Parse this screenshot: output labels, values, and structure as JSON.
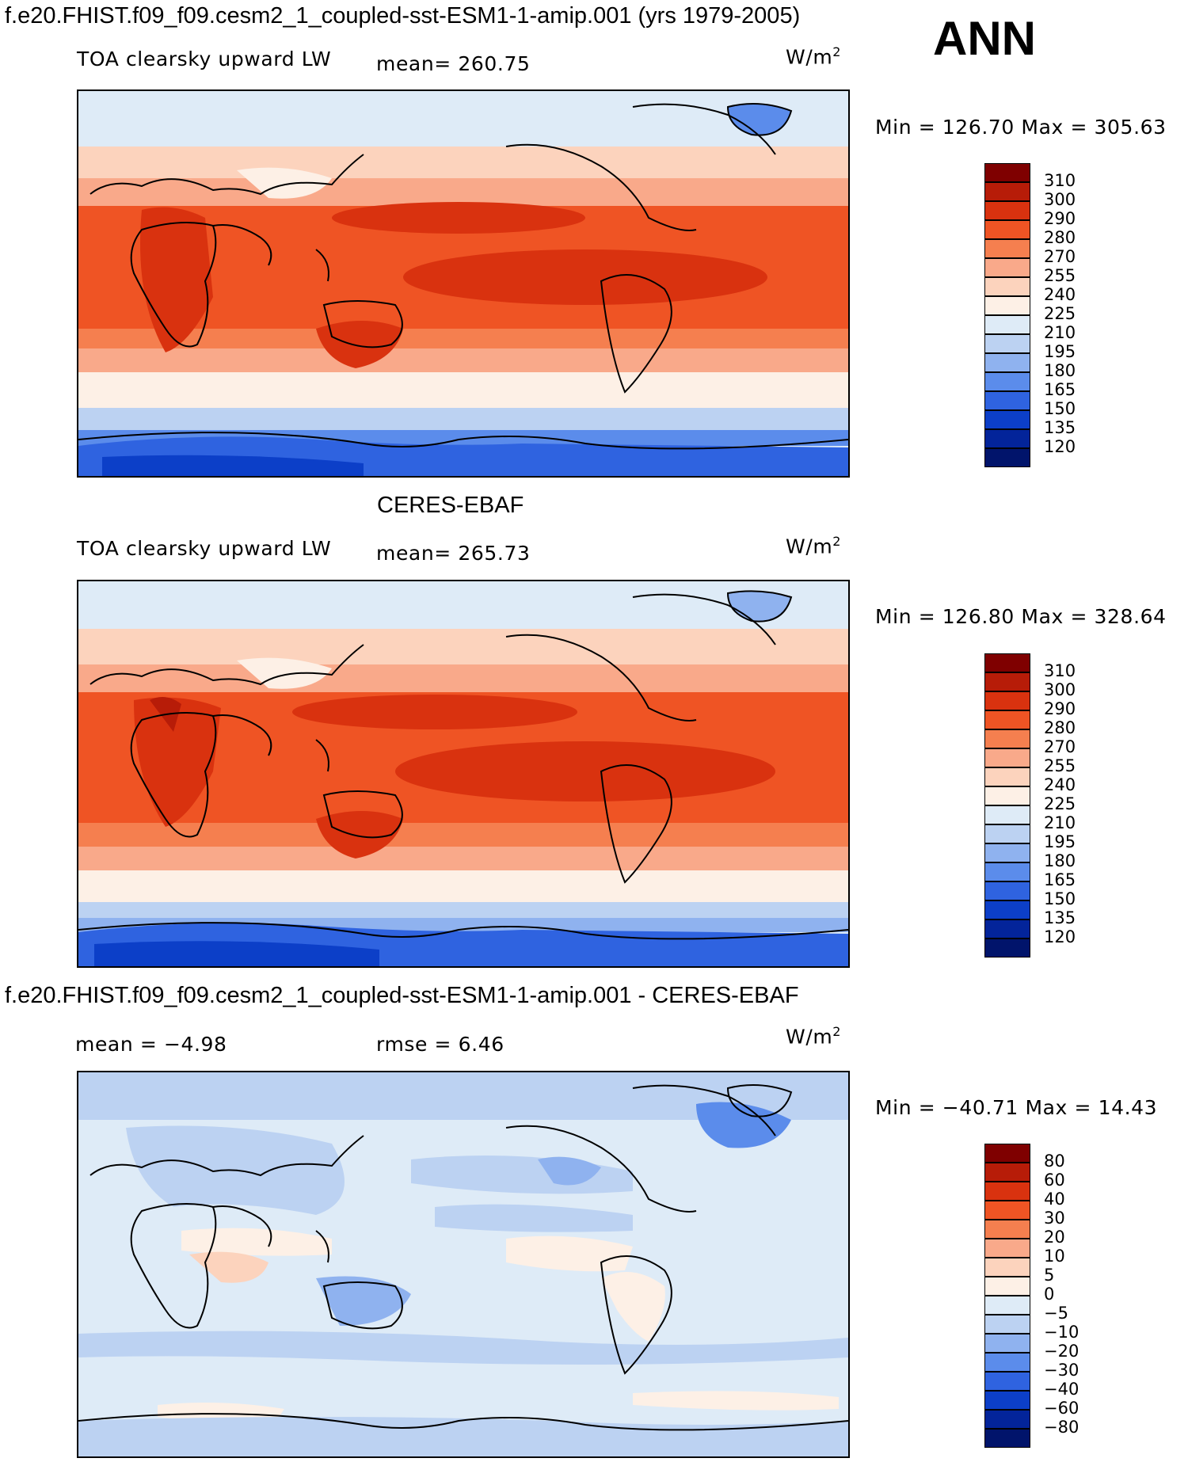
{
  "header": {
    "case_title": "f.e20.FHIST.f09_f09.cesm2_1_coupled-sst-ESM1-1-amip.001 (yrs 1979-2005)",
    "season": "ANN"
  },
  "panels": [
    {
      "title": "",
      "variable_label": "TOA clearsky upward LW",
      "mean_text": "mean= 260.75",
      "units": "W/m",
      "units_exp": "2",
      "minmax_text": "Min = 126.70 Max = 305.63",
      "colorbar_labels": [
        "310",
        "300",
        "290",
        "280",
        "270",
        "255",
        "240",
        "225",
        "210",
        "195",
        "180",
        "165",
        "150",
        "135",
        "120"
      ]
    },
    {
      "title": "CERES-EBAF",
      "variable_label": "TOA clearsky upward LW",
      "mean_text": "mean= 265.73",
      "units": "W/m",
      "units_exp": "2",
      "minmax_text": "Min = 126.80 Max = 328.64",
      "colorbar_labels": [
        "310",
        "300",
        "290",
        "280",
        "270",
        "255",
        "240",
        "225",
        "210",
        "195",
        "180",
        "165",
        "150",
        "135",
        "120"
      ]
    },
    {
      "title": "f.e20.FHIST.f09_f09.cesm2_1_coupled-sst-ESM1-1-amip.001 - CERES-EBAF",
      "mean_text": "mean =  −4.98",
      "rmse_text": "rmse =   6.46",
      "units": "W/m",
      "units_exp": "2",
      "minmax_text": "Min = −40.71 Max =  14.43",
      "colorbar_labels": [
        "80",
        "60",
        "40",
        "30",
        "20",
        "10",
        "5",
        "0",
        "−5",
        "−10",
        "−20",
        "−30",
        "−40",
        "−60",
        "−80"
      ]
    }
  ],
  "colors": {
    "abs_palette": [
      "#7f0000",
      "#b71c08",
      "#d9320f",
      "#ef5424",
      "#f57f4f",
      "#f9a98a",
      "#fcd3bd",
      "#fdf0e6",
      "#deebf7",
      "#bcd2f2",
      "#8fb2ef",
      "#5b8ceb",
      "#2f63e0",
      "#0c3fc8",
      "#03249a",
      "#01146b"
    ],
    "diff_palette": [
      "#7f0000",
      "#b71c08",
      "#d9320f",
      "#ef5424",
      "#f57f4f",
      "#f9a98a",
      "#fcd3bd",
      "#fdf0e6",
      "#deebf7",
      "#bcd2f2",
      "#8fb2ef",
      "#5b8ceb",
      "#2f63e0",
      "#0c3fc8",
      "#03249a",
      "#01146b"
    ]
  }
}
